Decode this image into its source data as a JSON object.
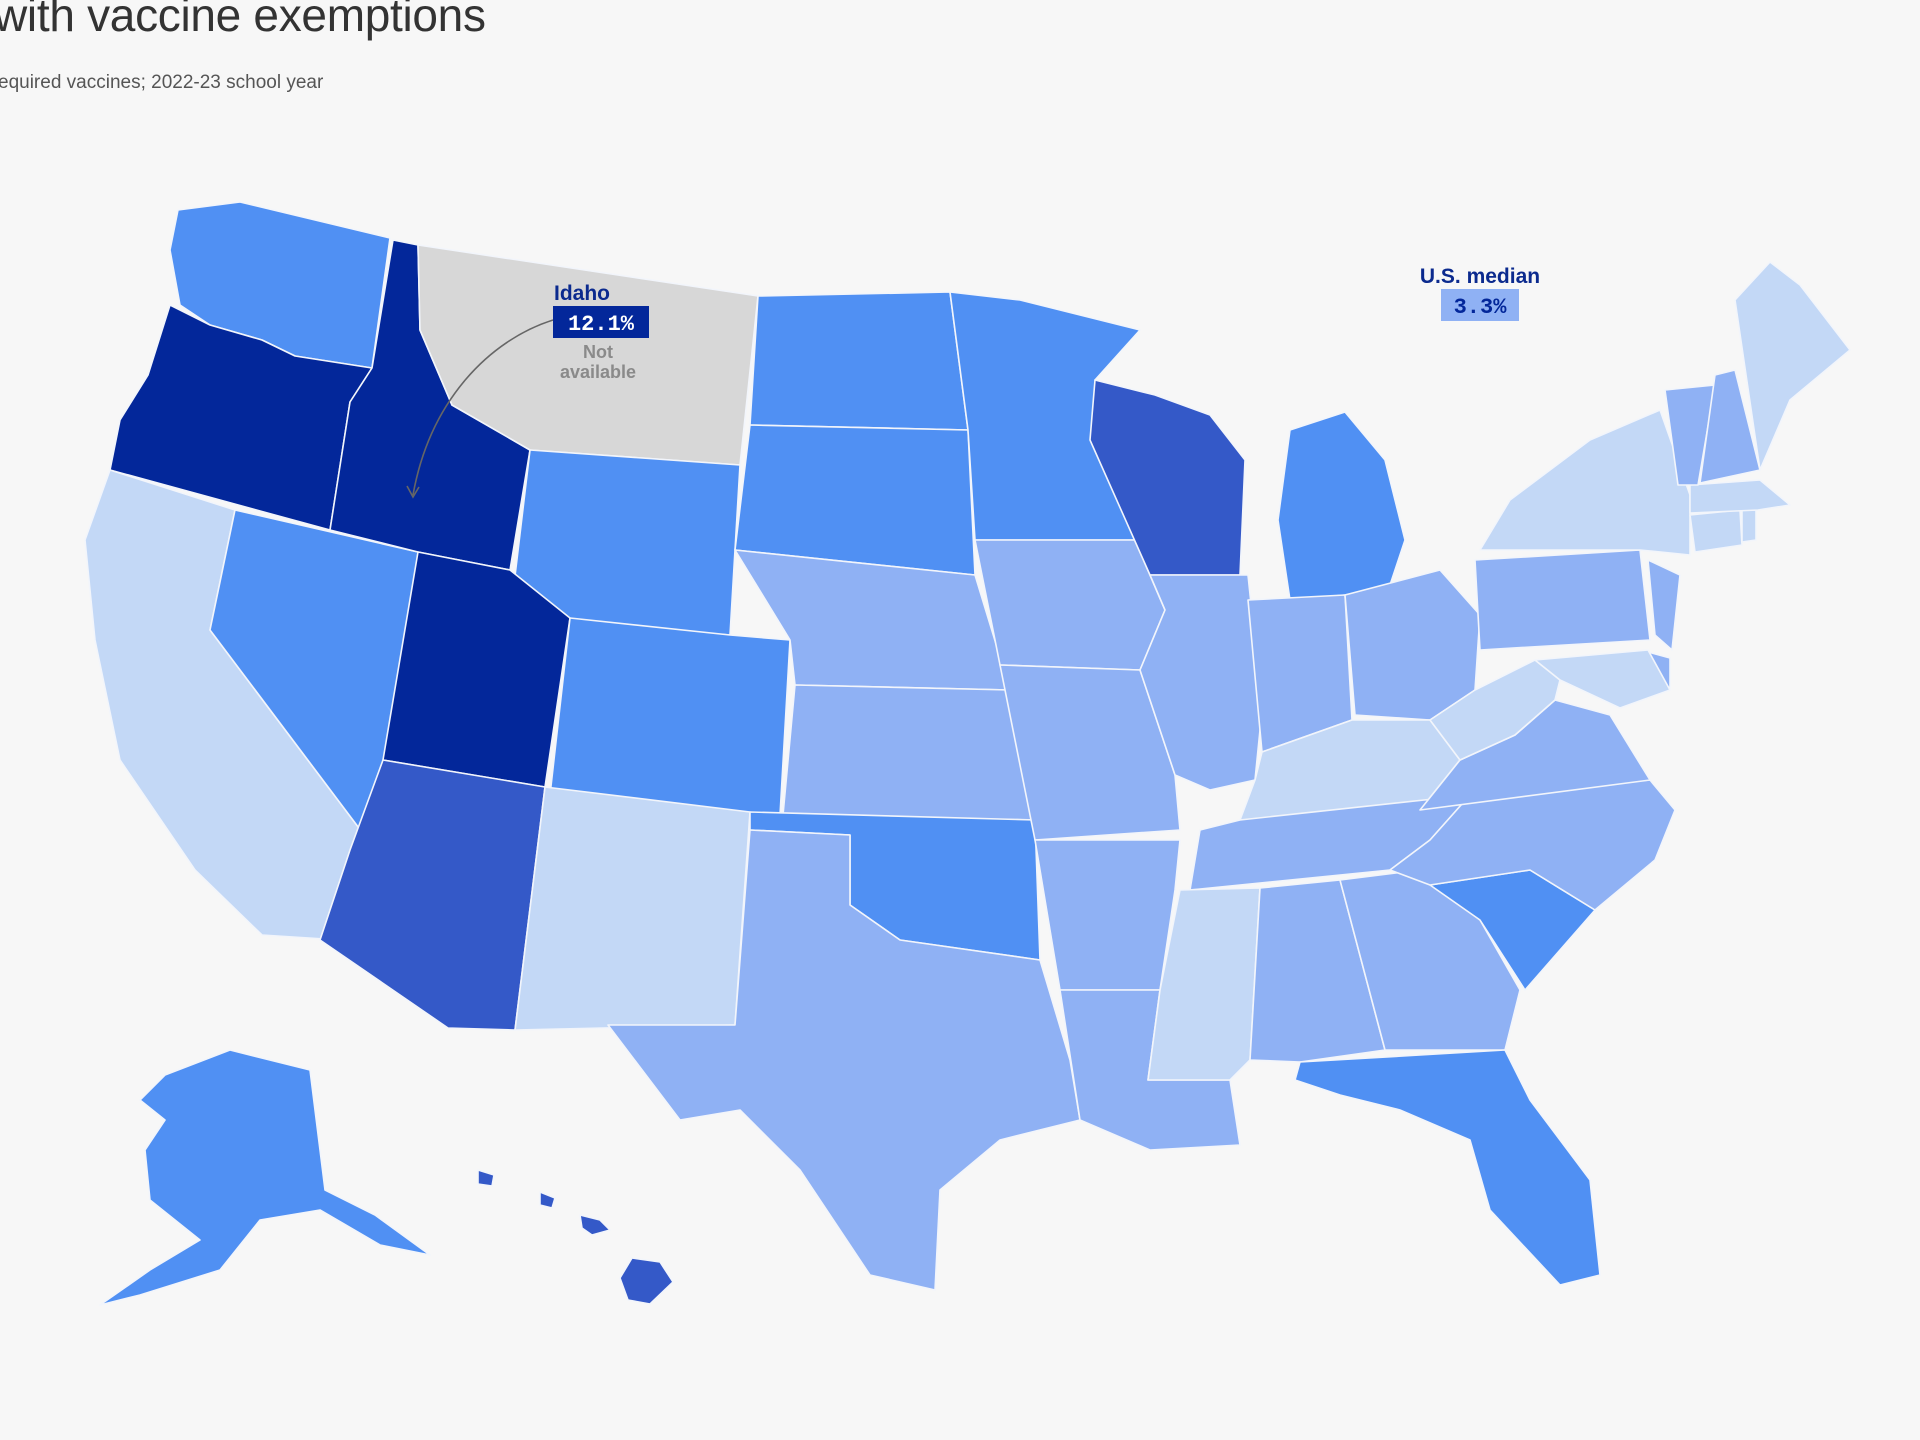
{
  "title": "with vaccine exemptions",
  "subtitle": "equired vaccines; 2022-23 school year",
  "colors": {
    "background": "#f7f7f7",
    "not_available": "#d7d7d7",
    "bin1": "#c3d8f6",
    "bin2": "#8fb1f4",
    "bin3": "#5090f3",
    "bin4": "#3459c8",
    "bin5": "#03279a"
  },
  "annotations": {
    "idaho_name": "Idaho",
    "idaho_value": "12.1%",
    "not_available_line1": "Not",
    "not_available_line2": "available",
    "median_label": "U.S. median",
    "median_value": "3.3%"
  },
  "chart_data": {
    "type": "choropleth",
    "region": "United States",
    "highlight": {
      "state": "Idaho",
      "value_pct": 12.1
    },
    "median": {
      "label": "U.S. median",
      "value_pct": 3.3
    },
    "not_available": [
      "Montana"
    ],
    "states": [
      {
        "name": "Washington",
        "bin": 3
      },
      {
        "name": "Oregon",
        "bin": 5
      },
      {
        "name": "California",
        "bin": 1
      },
      {
        "name": "Nevada",
        "bin": 3
      },
      {
        "name": "Idaho",
        "bin": 5,
        "value_pct": 12.1
      },
      {
        "name": "Montana",
        "bin": 0
      },
      {
        "name": "Wyoming",
        "bin": 3
      },
      {
        "name": "Utah",
        "bin": 5
      },
      {
        "name": "Arizona",
        "bin": 4
      },
      {
        "name": "Colorado",
        "bin": 3
      },
      {
        "name": "New Mexico",
        "bin": 1
      },
      {
        "name": "North Dakota",
        "bin": 3
      },
      {
        "name": "South Dakota",
        "bin": 3
      },
      {
        "name": "Nebraska",
        "bin": 2
      },
      {
        "name": "Kansas",
        "bin": 2
      },
      {
        "name": "Oklahoma",
        "bin": 3
      },
      {
        "name": "Texas",
        "bin": 2
      },
      {
        "name": "Minnesota",
        "bin": 3
      },
      {
        "name": "Iowa",
        "bin": 2
      },
      {
        "name": "Missouri",
        "bin": 2
      },
      {
        "name": "Arkansas",
        "bin": 2
      },
      {
        "name": "Louisiana",
        "bin": 2
      },
      {
        "name": "Wisconsin",
        "bin": 4
      },
      {
        "name": "Illinois",
        "bin": 2
      },
      {
        "name": "Michigan",
        "bin": 3
      },
      {
        "name": "Indiana",
        "bin": 2
      },
      {
        "name": "Ohio",
        "bin": 2
      },
      {
        "name": "Kentucky",
        "bin": 1
      },
      {
        "name": "Tennessee",
        "bin": 2
      },
      {
        "name": "Mississippi",
        "bin": 1
      },
      {
        "name": "Alabama",
        "bin": 2
      },
      {
        "name": "Georgia",
        "bin": 2
      },
      {
        "name": "Florida",
        "bin": 3
      },
      {
        "name": "South Carolina",
        "bin": 3
      },
      {
        "name": "North Carolina",
        "bin": 2
      },
      {
        "name": "Virginia",
        "bin": 2
      },
      {
        "name": "West Virginia",
        "bin": 1
      },
      {
        "name": "Pennsylvania",
        "bin": 2
      },
      {
        "name": "New York",
        "bin": 1
      },
      {
        "name": "New Jersey",
        "bin": 2
      },
      {
        "name": "Delaware",
        "bin": 2
      },
      {
        "name": "Maryland",
        "bin": 1
      },
      {
        "name": "Connecticut",
        "bin": 1
      },
      {
        "name": "Rhode Island",
        "bin": 1
      },
      {
        "name": "Massachusetts",
        "bin": 1
      },
      {
        "name": "Vermont",
        "bin": 2
      },
      {
        "name": "New Hampshire",
        "bin": 2
      },
      {
        "name": "Maine",
        "bin": 1
      },
      {
        "name": "Alaska",
        "bin": 3
      },
      {
        "name": "Hawaii",
        "bin": 4
      }
    ]
  }
}
